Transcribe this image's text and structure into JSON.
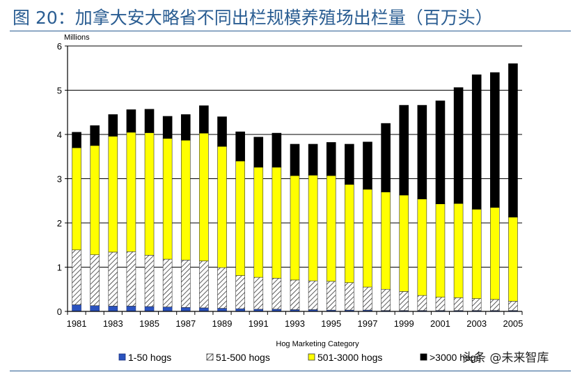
{
  "figure_title": "图 20：加拿大安大略省不同出栏规模养殖场出栏量（百万头）",
  "watermark": "头条 @未来智库",
  "colors": {
    "title": "#2a5d92",
    "s1": "#2a52be",
    "s3": "#ffff00",
    "s4": "#000000"
  },
  "chart_data": {
    "type": "stacked-bar",
    "ylabel": "Millions",
    "xlabel": "Hog Marketing Category",
    "ylim": [
      0,
      6
    ],
    "yticks": [
      "0",
      "1",
      "2",
      "3",
      "4",
      "5",
      "6"
    ],
    "categories": [
      "1981",
      "1982",
      "1983",
      "1984",
      "1985",
      "1986",
      "1987",
      "1988",
      "1989",
      "1990",
      "1991",
      "1992",
      "1993",
      "1994",
      "1995",
      "1996",
      "1997",
      "1998",
      "1999",
      "2000",
      "2001",
      "2002",
      "2003",
      "2004",
      "2005"
    ],
    "xtick_labels": [
      "1981",
      "1983",
      "1985",
      "1987",
      "1989",
      "1991",
      "1993",
      "1995",
      "1997",
      "1999",
      "2001",
      "2003",
      "2005"
    ],
    "series": [
      {
        "name": "1-50 hogs",
        "values": [
          0.15,
          0.13,
          0.12,
          0.12,
          0.11,
          0.1,
          0.09,
          0.08,
          0.07,
          0.06,
          0.05,
          0.05,
          0.04,
          0.04,
          0.03,
          0.03,
          0.03,
          0.02,
          0.02,
          0.02,
          0.02,
          0.02,
          0.02,
          0.02,
          0.02
        ]
      },
      {
        "name": "51-500 hogs",
        "values": [
          1.24,
          1.15,
          1.22,
          1.23,
          1.16,
          1.08,
          1.07,
          1.06,
          0.92,
          0.75,
          0.72,
          0.7,
          0.67,
          0.65,
          0.65,
          0.62,
          0.52,
          0.48,
          0.43,
          0.34,
          0.3,
          0.29,
          0.27,
          0.25,
          0.21
        ]
      },
      {
        "name": "501-3000 hogs",
        "values": [
          2.31,
          2.47,
          2.62,
          2.7,
          2.77,
          2.73,
          2.71,
          2.89,
          2.74,
          2.59,
          2.49,
          2.51,
          2.36,
          2.39,
          2.39,
          2.22,
          2.21,
          2.2,
          2.18,
          2.18,
          2.11,
          2.13,
          2.02,
          2.08,
          1.9
        ]
      },
      {
        "name": ">3000 hogs",
        "values": [
          0.35,
          0.45,
          0.49,
          0.51,
          0.53,
          0.5,
          0.58,
          0.62,
          0.67,
          0.66,
          0.68,
          0.77,
          0.71,
          0.7,
          0.75,
          0.91,
          1.07,
          1.55,
          2.03,
          2.12,
          2.33,
          2.62,
          3.04,
          3.05,
          3.47
        ]
      }
    ]
  }
}
